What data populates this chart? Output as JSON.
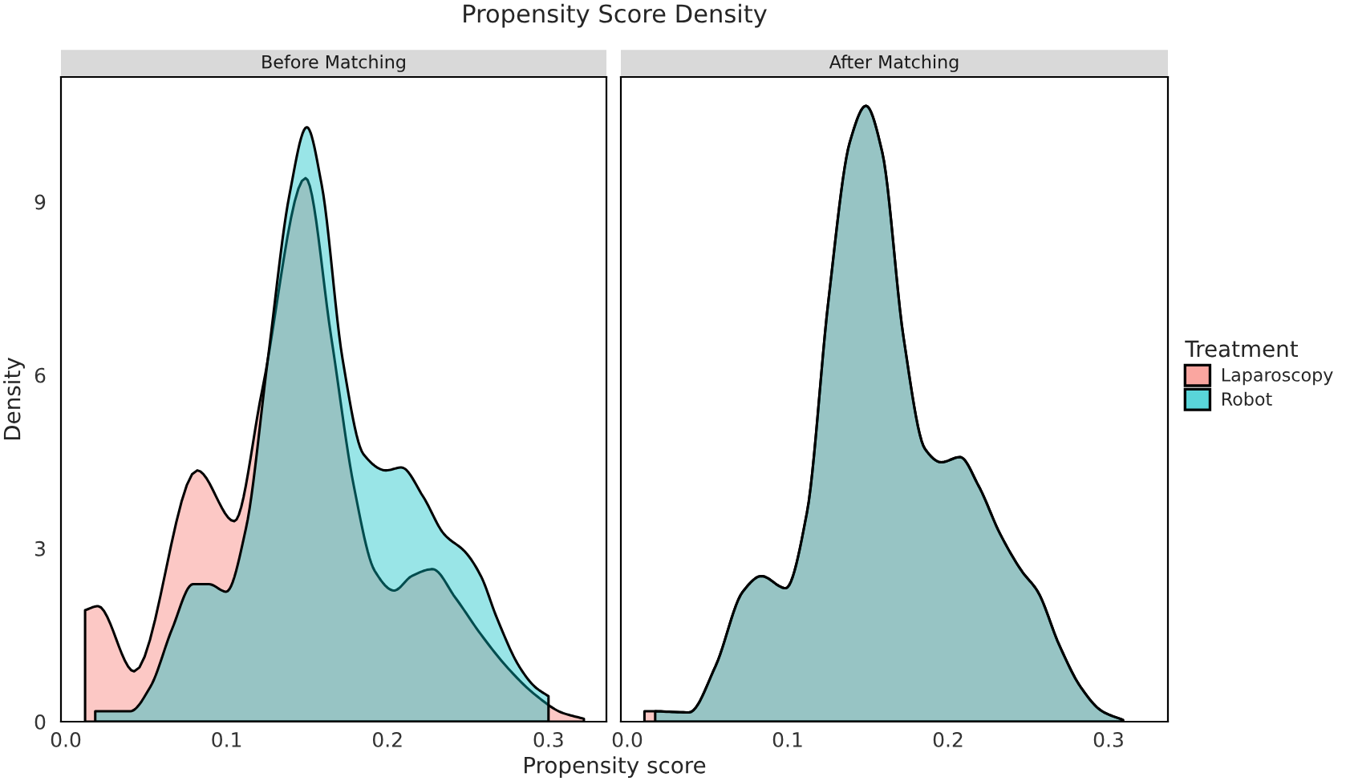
{
  "chart_data": [
    {
      "type": "area",
      "title": "Before Matching",
      "legend_title": "Treatment",
      "legend": "right",
      "annotations": [
        "Propensity Score Density"
      ],
      "xlabel": "Propensity score",
      "ylabel": "Density",
      "xlim": [
        -0.003,
        0.336
      ],
      "ylim": [
        0,
        11.16
      ],
      "xticks": [
        {
          "value": 0,
          "label": "0.0"
        },
        0.1,
        0.2,
        0.3
      ],
      "yticks": [
        0,
        3,
        6,
        9
      ],
      "series": [
        {
          "name": "Laparoscopy",
          "color": "#f8766d",
          "x": [
            0.012,
            0.02,
            0.0425,
            0.0817,
            0.1047,
            0.122,
            0.149,
            0.165,
            0.179,
            0.192,
            0.204,
            0.215,
            0.228,
            0.242,
            0.258,
            0.275,
            0.292,
            0.308,
            0.322
          ],
          "values": [
            1.93,
            2.0,
            0.87,
            4.35,
            3.47,
            5.73,
            9.41,
            6.65,
            4.08,
            2.61,
            2.27,
            2.52,
            2.64,
            2.15,
            1.51,
            0.92,
            0.46,
            0.16,
            0.05
          ]
        },
        {
          "name": "Robot",
          "color": "#00bfc4",
          "x": [
            0.0183,
            0.04,
            0.0525,
            0.066,
            0.079,
            0.089,
            0.0997,
            0.112,
            0.1256,
            0.139,
            0.1498,
            0.159,
            0.172,
            0.185,
            0.199,
            0.2086,
            0.222,
            0.235,
            0.2485,
            0.258,
            0.268,
            0.2817,
            0.2917,
            0.3
          ],
          "values": [
            0.18,
            0.18,
            0.6,
            1.6,
            2.38,
            2.38,
            2.25,
            3.35,
            6.28,
            9.12,
            10.29,
            9.3,
            6.28,
            4.63,
            4.35,
            4.4,
            3.9,
            3.25,
            2.93,
            2.52,
            1.79,
            0.96,
            0.6,
            0.44
          ]
        }
      ]
    },
    {
      "type": "area",
      "title": "After Matching",
      "tick_labels": "x",
      "xlim": [
        -0.004,
        0.337
      ],
      "ylim": [
        0,
        11.16
      ],
      "xticks": [
        {
          "value": 0,
          "label": "0.0"
        },
        0.1,
        0.2,
        0.3
      ],
      "series": [
        {
          "color": "#f8766d",
          "x": [
            0.0107,
            0.0174,
            0.0385,
            0.055,
            0.072,
            0.0836,
            0.0987,
            0.112,
            0.1254,
            0.1388,
            0.1488,
            0.1589,
            0.1722,
            0.1856,
            0.1957,
            0.2074,
            0.219,
            0.2324,
            0.2458,
            0.2559,
            0.2692,
            0.2826,
            0.296,
            0.309
          ],
          "values": [
            0.18,
            0.18,
            0.16,
            0.96,
            2.25,
            2.52,
            2.31,
            3.62,
            7.29,
            10.04,
            10.66,
            9.86,
            6.65,
            4.72,
            4.49,
            4.58,
            4.08,
            3.25,
            2.61,
            2.25,
            1.33,
            0.6,
            0.18,
            0.03
          ]
        },
        {
          "color": "#00bfc4",
          "x": [
            0.0174,
            0.0385,
            0.055,
            0.072,
            0.0836,
            0.0987,
            0.112,
            0.1254,
            0.1388,
            0.1488,
            0.1589,
            0.1722,
            0.1856,
            0.1957,
            0.2074,
            0.219,
            0.2324,
            0.2458,
            0.2559,
            0.2692,
            0.2826,
            0.296,
            0.309
          ],
          "values": [
            0.18,
            0.16,
            0.96,
            2.25,
            2.52,
            2.31,
            3.62,
            7.29,
            10.04,
            10.66,
            9.86,
            6.65,
            4.72,
            4.49,
            4.58,
            4.08,
            3.25,
            2.61,
            2.25,
            1.33,
            0.6,
            0.18,
            0.03
          ]
        }
      ]
    }
  ]
}
